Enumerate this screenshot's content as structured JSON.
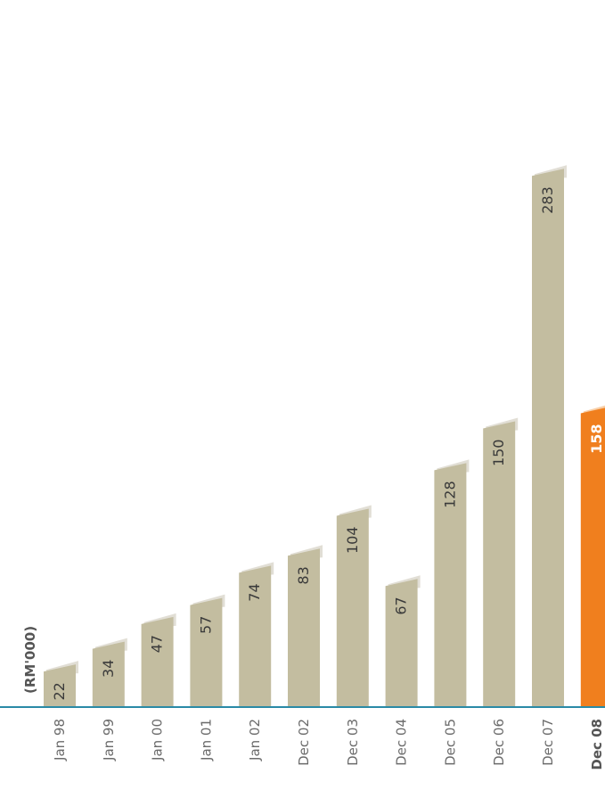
{
  "chart_data": {
    "type": "bar",
    "orientation": "vertical bars, figure rotated 90 degrees counter-clockwise",
    "unit_label": "(RM'000)",
    "categories": [
      "Jan 98",
      "Jan 99",
      "Jan 00",
      "Jan 01",
      "Jan 02",
      "Dec 02",
      "Dec 03",
      "Dec 04",
      "Dec 05",
      "Dec 06",
      "Dec 07",
      "Dec 08"
    ],
    "values": [
      22,
      34,
      47,
      57,
      74,
      83,
      104,
      67,
      128,
      150,
      283,
      158
    ],
    "highlight_index": 11,
    "grid": false,
    "legend": "none",
    "colors": {
      "bar": "#c3bda0",
      "bar_shadow": "#d9d6cb",
      "highlight": "#f07f1e",
      "baseline": "#2a8aa6",
      "text": "#3a3a3a"
    }
  }
}
